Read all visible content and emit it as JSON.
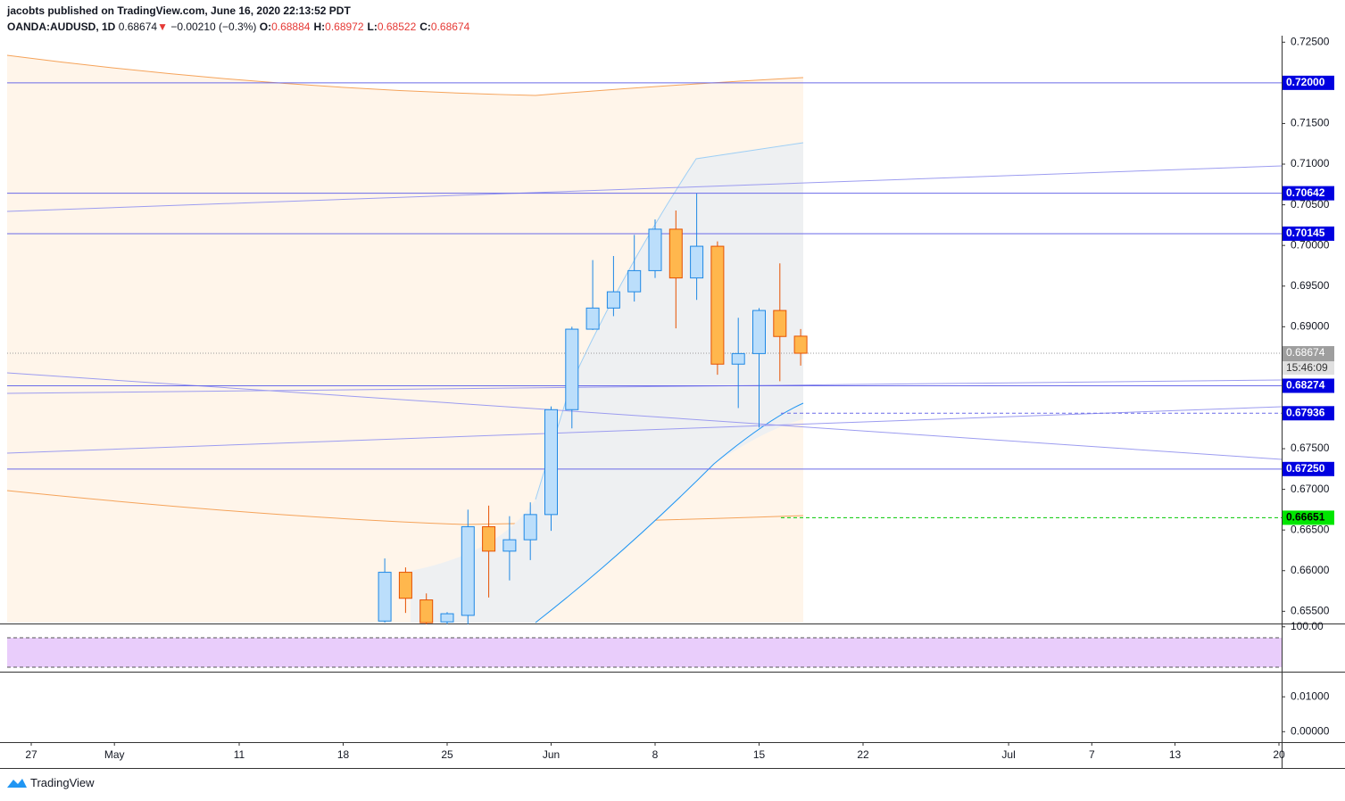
{
  "header": {
    "publisher": "jacobts published on TradingView.com, June 16, 2020 22:13:52 PDT",
    "symbol": "OANDA:AUDUSD, 1D",
    "last": "0.68674",
    "arrow": "▼",
    "change": "−0.00210 (−0.3%)",
    "ohlc": [
      {
        "label": "O:",
        "value": "0.68884"
      },
      {
        "label": "H:",
        "value": "0.68972"
      },
      {
        "label": "L:",
        "value": "0.68522"
      },
      {
        "label": "C:",
        "value": "0.68674"
      }
    ]
  },
  "chart_data": {
    "type": "candlestick",
    "dates": [
      "2020-05-20",
      "2020-05-21",
      "2020-05-22",
      "2020-05-25",
      "2020-05-26",
      "2020-05-27",
      "2020-05-28",
      "2020-05-29",
      "2020-06-01",
      "2020-06-02",
      "2020-06-03",
      "2020-06-04",
      "2020-06-05",
      "2020-06-08",
      "2020-06-09",
      "2020-06-10",
      "2020-06-11",
      "2020-06-12",
      "2020-06-15",
      "2020-06-16",
      "2020-06-17"
    ],
    "open": [
      0.6538,
      0.6598,
      0.6564,
      0.6537,
      0.6545,
      0.6654,
      0.6624,
      0.6638,
      0.6669,
      0.6798,
      0.6897,
      0.6923,
      0.6943,
      0.6969,
      0.702,
      0.696,
      0.6999,
      0.6854,
      0.6867,
      0.692,
      0.68884
    ],
    "high": [
      0.6615,
      0.6604,
      0.6572,
      0.6549,
      0.6675,
      0.668,
      0.6667,
      0.6684,
      0.6802,
      0.69,
      0.6982,
      0.6987,
      0.7013,
      0.7032,
      0.7043,
      0.7064,
      0.7005,
      0.6911,
      0.6923,
      0.6978,
      0.68972
    ],
    "low": [
      0.6536,
      0.6548,
      0.6534,
      0.6534,
      0.6534,
      0.6567,
      0.6588,
      0.6613,
      0.6649,
      0.6775,
      0.6896,
      0.6913,
      0.6931,
      0.696,
      0.6898,
      0.6933,
      0.6841,
      0.68,
      0.6776,
      0.6833,
      0.68522
    ],
    "close": [
      0.6598,
      0.6566,
      0.6536,
      0.6547,
      0.6654,
      0.6624,
      0.6638,
      0.6669,
      0.6798,
      0.6897,
      0.6923,
      0.6943,
      0.6969,
      0.702,
      0.696,
      0.6999,
      0.6854,
      0.6867,
      0.692,
      0.6888,
      0.68674
    ],
    "up_color": "#bbdefb",
    "up_border": "#1e88e5",
    "down_color": "#ffb74d",
    "down_border": "#e65100",
    "ylim": [
      0.6535,
      0.7258
    ],
    "yticks": [
      {
        "value": 0.725,
        "label": "0.72500"
      },
      {
        "value": 0.715,
        "label": "0.71500"
      },
      {
        "value": 0.71,
        "label": "0.71000"
      },
      {
        "value": 0.705,
        "label": "0.70500"
      },
      {
        "value": 0.7,
        "label": "0.70000"
      },
      {
        "value": 0.695,
        "label": "0.69500"
      },
      {
        "value": 0.69,
        "label": "0.69000"
      },
      {
        "value": 0.675,
        "label": "0.67500"
      },
      {
        "value": 0.67,
        "label": "0.67000"
      },
      {
        "value": 0.665,
        "label": "0.66500"
      },
      {
        "value": 0.66,
        "label": "0.66000"
      },
      {
        "value": 0.655,
        "label": "0.65500"
      }
    ],
    "xticks": [
      {
        "value": "2020-04-27",
        "label": "27"
      },
      {
        "value": "2020-05-01",
        "label": "May"
      },
      {
        "value": "2020-05-11",
        "label": "11"
      },
      {
        "value": "2020-05-18",
        "label": "18"
      },
      {
        "value": "2020-05-25",
        "label": "25"
      },
      {
        "value": "2020-06-01",
        "label": "Jun"
      },
      {
        "value": "2020-06-08",
        "label": "8"
      },
      {
        "value": "2020-06-15",
        "label": "15"
      },
      {
        "value": "2020-06-22",
        "label": "22"
      },
      {
        "value": "2020-07-01",
        "label": "Jul"
      },
      {
        "value": "2020-07-07",
        "label": "7"
      },
      {
        "value": "2020-07-13",
        "label": "13"
      },
      {
        "value": "2020-07-20",
        "label": "20"
      }
    ],
    "levels": [
      {
        "value": 0.72,
        "label": "0.72000",
        "color": "#0000e0"
      },
      {
        "value": 0.70642,
        "label": "0.70642",
        "color": "#0000e0"
      },
      {
        "value": 0.70145,
        "label": "0.70145",
        "color": "#0000e0"
      },
      {
        "value": 0.68274,
        "label": "0.68274",
        "color": "#0000e0"
      },
      {
        "value": 0.67936,
        "label": "0.67936",
        "color": "#0000e0"
      },
      {
        "value": 0.6725,
        "label": "0.67250",
        "color": "#0000e0"
      },
      {
        "value": 0.66651,
        "label": "0.66651",
        "color": "#00e600"
      }
    ],
    "last_price": {
      "value": 0.68674,
      "label": "0.68674",
      "countdown": "15:46:09"
    },
    "rsi": {
      "ylim": [
        10,
        105
      ],
      "yticks": [
        {
          "value": 100,
          "label": "100.00"
        }
      ]
    },
    "macd": {
      "ylim": [
        -0.003,
        0.0167
      ],
      "yticks": [
        {
          "value": 0.01,
          "label": "0.01000"
        },
        {
          "value": 0,
          "label": "0.00000"
        }
      ]
    }
  },
  "footer": {
    "brand": "TradingView"
  }
}
